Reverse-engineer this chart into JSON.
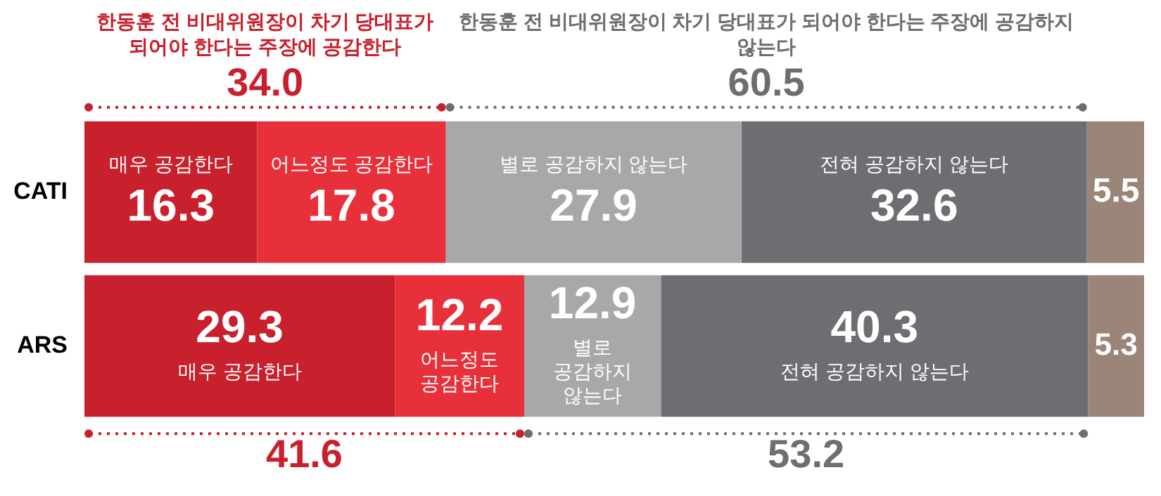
{
  "chart_data": {
    "type": "bar",
    "orientation": "horizontal",
    "stacked": true,
    "categories": [
      "CATI",
      "ARS"
    ],
    "xlim": [
      0,
      100
    ],
    "tick_labels": "y",
    "data_labels": true,
    "series": [
      {
        "name": "매우 공감한다",
        "color": "#c8202d",
        "values": [
          16.3,
          29.3
        ]
      },
      {
        "name": "어느정도 공감한다",
        "color": "#e8303a",
        "values": [
          17.8,
          12.2
        ]
      },
      {
        "name": "별로 공감하지 않는다",
        "color": "#a7a8aa",
        "values": [
          27.9,
          12.9
        ]
      },
      {
        "name": "전혀 공감하지 않는다",
        "color": "#6d6e71",
        "values": [
          32.6,
          40.3
        ]
      },
      {
        "color": "#9b8579",
        "values": [
          5.5,
          5.3
        ]
      }
    ],
    "annotations": [
      "한동훈 전 비대위원장이 차기 당대표가 되어야 한다는 주장에 공감한다",
      "34.0",
      "한동훈 전 비대위원장이 차기 당대표가 되어야 한다는 주장에 공감하지 않는다",
      "60.5",
      "41.6",
      "53.2"
    ]
  }
}
